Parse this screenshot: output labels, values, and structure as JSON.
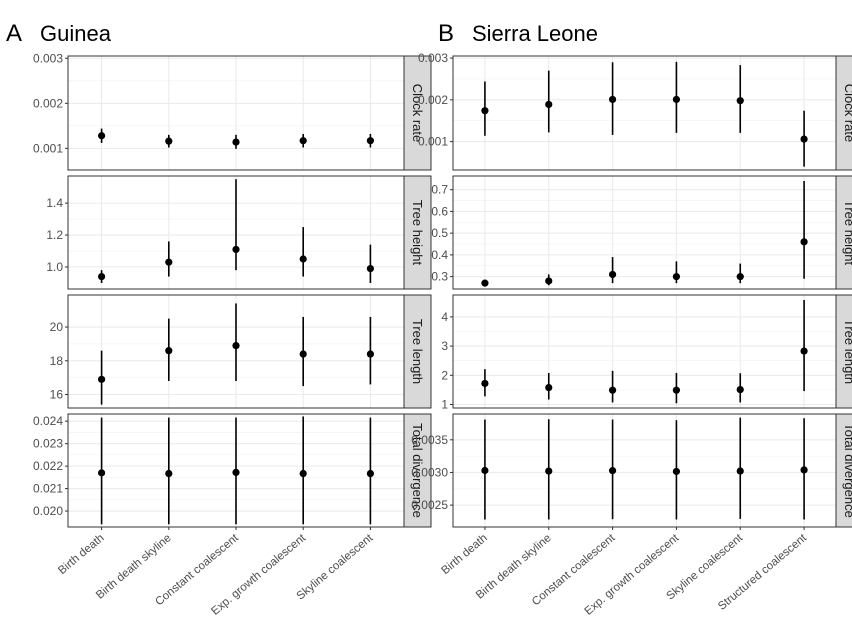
{
  "chart_data": [
    {
      "type": "scatter",
      "panel_label": "A",
      "title": "Guinea",
      "categories": [
        "Birth death",
        "Birth death skyline",
        "Constant coalescent",
        "Exp. growth coalescent",
        "Skyline coalescent"
      ],
      "facets": [
        {
          "label": "Clock rate",
          "ylim": [
            0.00052,
            0.00305
          ],
          "ticks": [
            0.001,
            0.002,
            0.003
          ],
          "tick_labels": [
            "0.001",
            "0.002",
            "0.003"
          ],
          "values": [
            0.00128,
            0.00116,
            0.00114,
            0.00117,
            0.00117
          ],
          "lower": [
            0.00112,
            0.00102,
            0.00099,
            0.00102,
            0.00102
          ],
          "upper": [
            0.00144,
            0.0013,
            0.0013,
            0.00132,
            0.00132
          ]
        },
        {
          "label": "Tree height",
          "ylim": [
            0.862,
            1.57
          ],
          "ticks": [
            1.0,
            1.2,
            1.4
          ],
          "tick_labels": [
            "1.0",
            "1.2",
            "1.4"
          ],
          "values": [
            0.94,
            1.03,
            1.11,
            1.05,
            0.99
          ],
          "lower": [
            0.9,
            0.94,
            0.98,
            0.94,
            0.9
          ],
          "upper": [
            0.98,
            1.16,
            1.55,
            1.25,
            1.14
          ]
        },
        {
          "label": "Tree length",
          "ylim": [
            15.2,
            21.9
          ],
          "ticks": [
            16,
            18,
            20
          ],
          "tick_labels": [
            "16",
            "18",
            "20"
          ],
          "values": [
            16.9,
            18.6,
            18.9,
            18.4,
            18.4
          ],
          "lower": [
            15.4,
            16.8,
            16.8,
            16.5,
            16.6
          ],
          "upper": [
            18.6,
            20.5,
            21.4,
            20.6,
            20.6
          ]
        },
        {
          "label": "Total divergence",
          "ylim": [
            0.01929,
            0.02432
          ],
          "ticks": [
            0.02,
            0.021,
            0.022,
            0.023,
            0.024
          ],
          "tick_labels": [
            "0.020",
            "0.021",
            "0.022",
            "0.023",
            "0.024"
          ],
          "values": [
            0.0217,
            0.02167,
            0.02172,
            0.02167,
            0.02167
          ],
          "lower": [
            0.01941,
            0.01941,
            0.01941,
            0.01941,
            0.01941
          ],
          "upper": [
            0.02416,
            0.02416,
            0.02416,
            0.02421,
            0.02416
          ]
        }
      ]
    },
    {
      "type": "scatter",
      "panel_label": "B",
      "title": "Sierra Leone",
      "categories": [
        "Birth death",
        "Birth death skyline",
        "Constant coalescent",
        "Exp. growth coalescent",
        "Skyline coalescent",
        "Structured coalescent"
      ],
      "facets": [
        {
          "label": "Clock rate",
          "ylim": [
            0.00032,
            0.00305
          ],
          "ticks": [
            0.001,
            0.002,
            0.003
          ],
          "tick_labels": [
            "0.001",
            "0.002",
            "0.003"
          ],
          "values": [
            0.00174,
            0.00189,
            0.00201,
            0.00201,
            0.00198,
            0.00106
          ],
          "lower": [
            0.00114,
            0.00122,
            0.00116,
            0.00121,
            0.00121,
            0.0004
          ],
          "upper": [
            0.00244,
            0.0027,
            0.0029,
            0.00291,
            0.00283,
            0.00174
          ]
        },
        {
          "label": "Tree height",
          "ylim": [
            0.243,
            0.763
          ],
          "ticks": [
            0.3,
            0.4,
            0.5,
            0.6,
            0.7
          ],
          "tick_labels": [
            "0.3",
            "0.4",
            "0.5",
            "0.6",
            "0.7"
          ],
          "values": [
            0.27,
            0.28,
            0.31,
            0.3,
            0.3,
            0.46
          ],
          "lower": [
            0.26,
            0.26,
            0.27,
            0.27,
            0.27,
            0.29
          ],
          "upper": [
            0.28,
            0.31,
            0.39,
            0.37,
            0.36,
            0.74
          ]
        },
        {
          "label": "Tree length",
          "ylim": [
            0.88,
            4.75
          ],
          "ticks": [
            1,
            2,
            3,
            4
          ],
          "tick_labels": [
            "1",
            "2",
            "3",
            "4"
          ],
          "values": [
            1.72,
            1.58,
            1.49,
            1.49,
            1.51,
            2.83
          ],
          "lower": [
            1.28,
            1.17,
            1.07,
            1.04,
            1.07,
            1.46
          ],
          "upper": [
            2.21,
            2.08,
            2.15,
            2.08,
            2.07,
            4.58
          ]
        },
        {
          "label": "Total divergence",
          "ylim": [
            0.002165,
            0.003895
          ],
          "ticks": [
            0.0025,
            0.003,
            0.0035
          ],
          "tick_labels": [
            "0.0025",
            "0.0030",
            "0.0035"
          ],
          "values": [
            0.00303,
            0.003021,
            0.003028,
            0.003016,
            0.003022,
            0.003039
          ],
          "lower": [
            0.00228,
            0.00228,
            0.002285,
            0.00228,
            0.00229,
            0.00228
          ],
          "upper": [
            0.00381,
            0.003815,
            0.00381,
            0.0038,
            0.00384,
            0.00383
          ]
        }
      ]
    }
  ]
}
